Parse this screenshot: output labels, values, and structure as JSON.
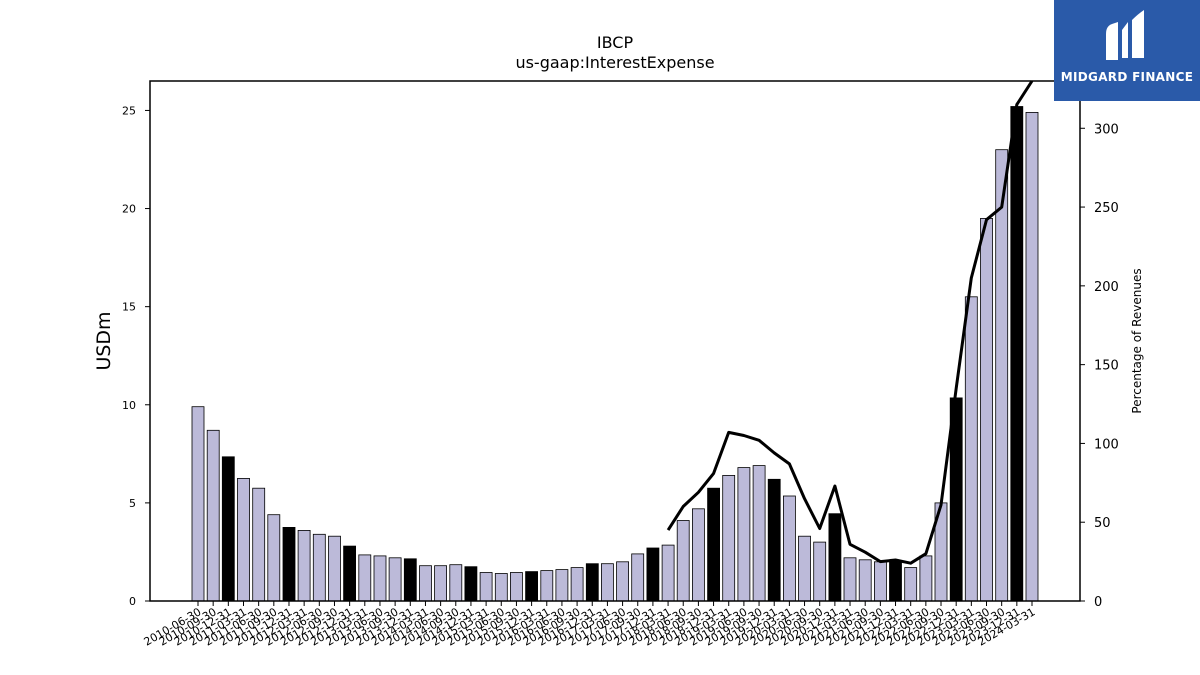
{
  "brand": {
    "name": "MIDGARD FINANCE",
    "color": "#2a5aa9",
    "icon": "midgard-logo-icon"
  },
  "chart_data": {
    "type": "bar",
    "title": "IBCP",
    "subtitle": "us-gaap:InterestExpense",
    "ylabel": "USDm",
    "ylabel_right": "Percentage of Revenues",
    "ylim": [
      0,
      26.5
    ],
    "ylim_right": [
      0,
      330
    ],
    "yticks": [
      0,
      5,
      10,
      15,
      20,
      25
    ],
    "yticks_right": [
      0,
      50,
      100,
      150,
      200,
      250,
      300
    ],
    "grid": false,
    "legend": "none",
    "colors": {
      "bar": "#bcbad9",
      "bar_q4": "#000000",
      "line": "#000000"
    },
    "categories": [
      "2010-06-30",
      "2010-09-30",
      "2010-12-31",
      "2011-03-31",
      "2011-06-30",
      "2011-09-30",
      "2011-12-31",
      "2012-03-31",
      "2012-06-30",
      "2012-09-30",
      "2012-12-31",
      "2013-03-31",
      "2013-06-30",
      "2013-09-30",
      "2013-12-31",
      "2014-03-31",
      "2014-06-30",
      "2014-09-30",
      "2014-12-31",
      "2015-03-31",
      "2015-06-30",
      "2015-09-30",
      "2015-12-31",
      "2016-03-31",
      "2016-06-30",
      "2016-09-30",
      "2016-12-31",
      "2017-03-31",
      "2017-06-30",
      "2017-09-30",
      "2017-12-31",
      "2018-03-31",
      "2018-06-30",
      "2018-09-30",
      "2018-12-31",
      "2019-03-31",
      "2019-06-30",
      "2019-09-30",
      "2019-12-31",
      "2020-03-31",
      "2020-06-30",
      "2020-09-30",
      "2020-12-31",
      "2021-03-31",
      "2021-06-30",
      "2021-09-30",
      "2021-12-31",
      "2022-03-31",
      "2022-06-30",
      "2022-09-30",
      "2022-12-31",
      "2023-03-31",
      "2023-06-30",
      "2023-09-30",
      "2023-12-31",
      "2024-03-31"
    ],
    "values": [
      9.9,
      8.7,
      7.35,
      6.25,
      5.75,
      4.4,
      3.75,
      3.6,
      3.4,
      3.3,
      2.8,
      2.35,
      2.3,
      2.2,
      2.15,
      1.8,
      1.8,
      1.85,
      1.75,
      1.45,
      1.4,
      1.45,
      1.5,
      1.55,
      1.6,
      1.7,
      1.9,
      1.9,
      2.0,
      2.4,
      2.7,
      2.85,
      4.1,
      4.7,
      5.75,
      6.4,
      6.8,
      6.9,
      6.2,
      5.35,
      3.3,
      3.0,
      4.45,
      2.2,
      2.1,
      2.0,
      2.0,
      1.7,
      2.3,
      5.0,
      10.35,
      15.5,
      19.5,
      23.0,
      25.2,
      24.9
    ],
    "highlight": [
      false,
      false,
      true,
      false,
      false,
      false,
      true,
      false,
      false,
      false,
      true,
      false,
      false,
      false,
      true,
      false,
      false,
      false,
      true,
      false,
      false,
      false,
      true,
      false,
      false,
      false,
      true,
      false,
      false,
      false,
      true,
      false,
      false,
      false,
      true,
      false,
      false,
      false,
      true,
      false,
      false,
      false,
      true,
      false,
      false,
      false,
      true,
      false,
      false,
      false,
      true,
      false,
      false,
      false,
      true,
      false
    ],
    "line_series": {
      "axis": "right",
      "start_index": 31,
      "values": [
        45,
        60,
        69,
        81,
        107,
        105,
        102,
        94,
        87,
        65,
        46,
        73,
        36,
        31,
        25,
        26,
        24,
        30,
        61,
        135,
        205,
        242,
        250,
        315,
        331
      ]
    }
  }
}
